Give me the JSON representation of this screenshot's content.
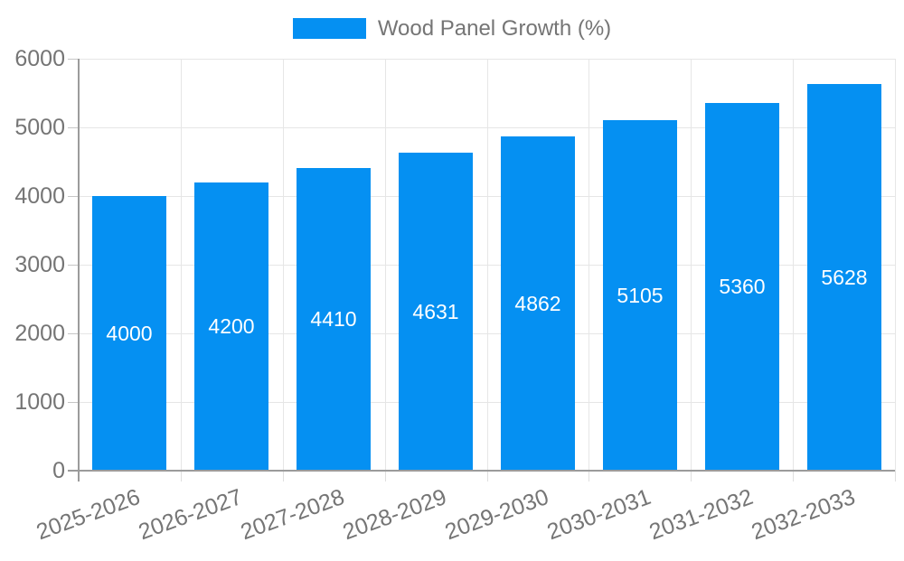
{
  "legend": {
    "label": "Wood Panel Growth (%)"
  },
  "chart_data": {
    "type": "bar",
    "title": "",
    "legend_entries": [
      "Wood Panel Growth (%)"
    ],
    "legend_position": "top",
    "categories": [
      "2025-2026",
      "2026-2027",
      "2027-2028",
      "2028-2029",
      "2029-2030",
      "2030-2031",
      "2031-2032",
      "2032-2033"
    ],
    "series": [
      {
        "name": "Wood Panel Growth (%)",
        "values": [
          4000,
          4200,
          4410,
          4631,
          4862,
          5105,
          5360,
          5628
        ]
      }
    ],
    "bar_value_labels": [
      "4000",
      "4200",
      "4410",
      "4631",
      "4862",
      "5105",
      "5360",
      "5628"
    ],
    "xlabel": "",
    "ylabel": "",
    "ylim": [
      0,
      6000
    ],
    "ytick_step": 1000,
    "ytick_labels": [
      "0",
      "1000",
      "2000",
      "3000",
      "4000",
      "5000",
      "6000"
    ],
    "grid": true,
    "colors": {
      "bar": "#0590f2",
      "grid": "#e6e6e6",
      "axis": "#9b9b9b",
      "left_tick": "#c6c6c6",
      "bottom_tick": "#dfdfdf",
      "axis_label": "#757575",
      "legend_text": "#757575",
      "bar_label_text": "#ffffff",
      "background": "#ffffff"
    }
  }
}
